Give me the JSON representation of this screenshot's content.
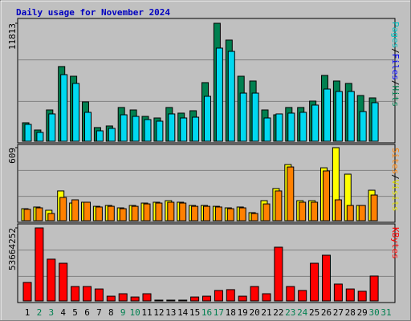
{
  "chart_data": [
    {
      "type": "bar",
      "title": "Daily usage for November 2024",
      "series": [
        {
          "name": "Hits",
          "color": "#008050",
          "values": [
            1850,
            1125,
            3135,
            7480,
            6510,
            3940,
            1370,
            1530,
            3380,
            3135,
            2490,
            2330,
            3380,
            2815,
            3055,
            5870,
            11813,
            10130,
            6510,
            6030,
            3135,
            2650,
            3380,
            3380,
            4020,
            6590,
            6030,
            5790,
            4580,
            4340,
            null
          ]
        },
        {
          "name": "Files",
          "color": "#00d8f0",
          "values": [
            1690,
            885,
            2735,
            6670,
            5790,
            2895,
            1045,
            1290,
            2650,
            2490,
            2170,
            2010,
            2735,
            2330,
            2410,
            4500,
            9325,
            9000,
            4820,
            4820,
            2330,
            2735,
            2815,
            2895,
            3620,
            5225,
            4985,
            4985,
            2975,
            3860,
            null
          ]
        }
      ],
      "legend_label_colors": [
        "#008050",
        "#0000ff"
      ],
      "legend_extra": {
        "name": "Pages",
        "color": "#00c0c0"
      },
      "legend_separator": "/",
      "ylim": [
        0,
        11813
      ],
      "yticks": [
        11813
      ]
    },
    {
      "type": "bar",
      "series": [
        {
          "name": "Visits",
          "color": "#ffff00",
          "values": [
            100,
            114,
            87,
            248,
            147,
            154,
            120,
            127,
            107,
            127,
            147,
            154,
            167,
            154,
            127,
            127,
            120,
            107,
            114,
            67,
            167,
            268,
            468,
            167,
            167,
            441,
            609,
            388,
            127,
            254,
            null
          ]
        },
        {
          "name": "Sites",
          "color": "#ff8000",
          "values": [
            95,
            107,
            60,
            194,
            174,
            154,
            114,
            120,
            100,
            120,
            140,
            147,
            154,
            147,
            120,
            120,
            114,
            100,
            107,
            60,
            140,
            248,
            448,
            154,
            154,
            415,
            174,
            127,
            127,
            214,
            null
          ]
        }
      ],
      "legend_label_colors": [
        "#e0e000",
        "#ff8000"
      ],
      "legend_separator": "/",
      "ylim": [
        0,
        609
      ],
      "yticks": [
        609
      ]
    },
    {
      "type": "bar",
      "categories": [
        "1",
        "2",
        "3",
        "4",
        "5",
        "6",
        "7",
        "8",
        "9",
        "10",
        "11",
        "12",
        "13",
        "14",
        "15",
        "16",
        "17",
        "18",
        "19",
        "20",
        "21",
        "22",
        "23",
        "24",
        "25",
        "26",
        "27",
        "28",
        "29",
        "30",
        "31"
      ],
      "category_colors": [
        "#000000",
        "#008050",
        "#008050",
        "#000000",
        "#000000",
        "#000000",
        "#000000",
        "#000000",
        "#008050",
        "#008050",
        "#000000",
        "#000000",
        "#000000",
        "#000000",
        "#000000",
        "#008050",
        "#008050",
        "#000000",
        "#000000",
        "#000000",
        "#000000",
        "#000000",
        "#008050",
        "#008050",
        "#000000",
        "#000000",
        "#000000",
        "#000000",
        "#000000",
        "#008050",
        "#008050"
      ],
      "series": [
        {
          "name": "KBytes",
          "color": "#ff0000",
          "values": [
            13600000,
            53664252,
            30700000,
            27700000,
            10600000,
            10600000,
            8800000,
            3500000,
            5300000,
            2900000,
            5300000,
            600000,
            600000,
            600000,
            2900000,
            3500000,
            7700000,
            8300000,
            3500000,
            10600000,
            5300000,
            39500000,
            10600000,
            7700000,
            27700000,
            33600000,
            12400000,
            8800000,
            7100000,
            18300000,
            null
          ]
        }
      ],
      "legend_label_colors": [
        "#ff0000"
      ],
      "ylim": [
        0,
        53664252
      ],
      "yticks": [
        53664252
      ]
    }
  ]
}
